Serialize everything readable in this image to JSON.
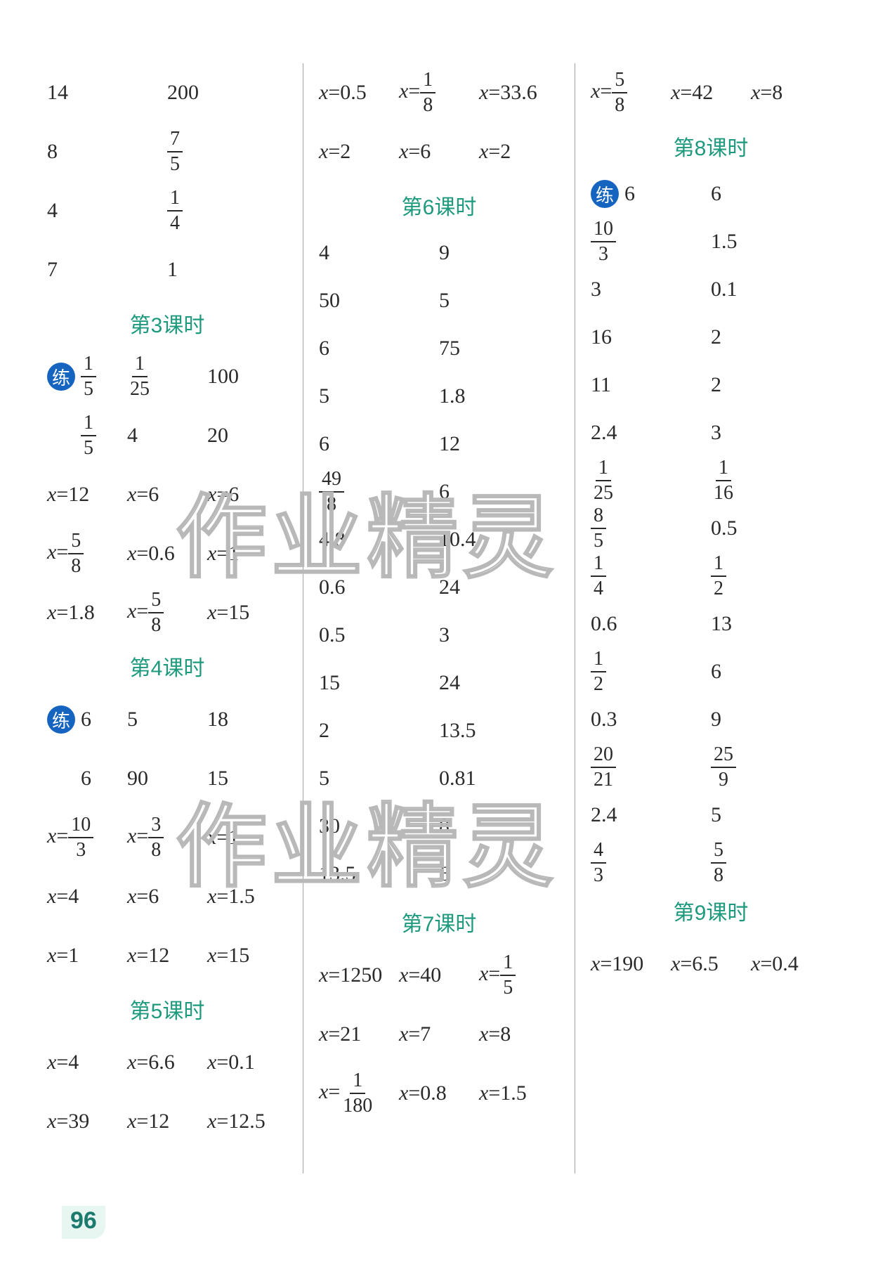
{
  "page_number": "96",
  "watermark": "作业精灵",
  "colors": {
    "text": "#2a2a2a",
    "heading": "#1d9a7e",
    "badge_bg": "#1565c0",
    "divider": "#9ea3a6",
    "pagenum": "#1d7a6e",
    "pagenum_bg": "#e8f6f2"
  },
  "badge_label": "练",
  "columns": [
    {
      "rows": [
        {
          "type": "row",
          "cells": [
            "14",
            "200"
          ]
        },
        {
          "type": "row",
          "cells": [
            "8",
            {
              "frac": [
                "7",
                "5"
              ]
            }
          ]
        },
        {
          "type": "row",
          "cells": [
            "4",
            {
              "frac": [
                "1",
                "4"
              ]
            }
          ]
        },
        {
          "type": "row",
          "cells": [
            "7",
            "1"
          ]
        },
        {
          "type": "header",
          "text": "第3课时"
        },
        {
          "type": "row",
          "badge": true,
          "cells": [
            {
              "frac": [
                "1",
                "5"
              ]
            },
            {
              "frac": [
                "1",
                "25"
              ]
            },
            "100"
          ]
        },
        {
          "type": "row",
          "indent": true,
          "cells": [
            {
              "frac": [
                "1",
                "5"
              ]
            },
            "4",
            "20"
          ]
        },
        {
          "type": "row",
          "cells": [
            {
              "eq": "12"
            },
            {
              "eq": "6"
            },
            {
              "eq": "6"
            }
          ]
        },
        {
          "type": "row",
          "cells": [
            {
              "eq": {
                "frac": [
                  "5",
                  "8"
                ]
              }
            },
            {
              "eq": "0.6"
            },
            {
              "eq": "1"
            }
          ]
        },
        {
          "type": "row",
          "cells": [
            {
              "eq": "1.8"
            },
            {
              "eq": {
                "frac": [
                  "5",
                  "8"
                ]
              }
            },
            {
              "eq": "15"
            }
          ]
        },
        {
          "type": "header",
          "text": "第4课时"
        },
        {
          "type": "row",
          "badge": true,
          "cells": [
            "6",
            "5",
            "18"
          ]
        },
        {
          "type": "row",
          "indent": true,
          "cells": [
            "6",
            "90",
            "15"
          ]
        },
        {
          "type": "row",
          "cells": [
            {
              "eq": {
                "frac": [
                  "10",
                  "3"
                ]
              }
            },
            {
              "eq": {
                "frac": [
                  "3",
                  "8"
                ]
              }
            },
            {
              "eq": "1"
            }
          ]
        },
        {
          "type": "row",
          "cells": [
            {
              "eq": "4"
            },
            {
              "eq": "6"
            },
            {
              "eq": "1.5"
            }
          ]
        },
        {
          "type": "row",
          "cells": [
            {
              "eq": "1"
            },
            {
              "eq": "12"
            },
            {
              "eq": "15"
            }
          ]
        },
        {
          "type": "header",
          "text": "第5课时"
        },
        {
          "type": "row",
          "cells": [
            {
              "eq": "4"
            },
            {
              "eq": "6.6"
            },
            {
              "eq": "0.1"
            }
          ]
        },
        {
          "type": "row",
          "cells": [
            {
              "eq": "39"
            },
            {
              "eq": "12"
            },
            {
              "eq": "12.5"
            }
          ]
        }
      ]
    },
    {
      "rows": [
        {
          "type": "row",
          "cells": [
            {
              "eq": "0.5"
            },
            {
              "eq": {
                "frac": [
                  "1",
                  "8"
                ]
              }
            },
            {
              "eq": "33.6"
            }
          ]
        },
        {
          "type": "row",
          "cells": [
            {
              "eq": "2"
            },
            {
              "eq": "6"
            },
            {
              "eq": "2"
            }
          ]
        },
        {
          "type": "header",
          "text": "第6课时"
        },
        {
          "type": "row",
          "half": true,
          "cells": [
            "4",
            "9"
          ]
        },
        {
          "type": "row",
          "half": true,
          "cells": [
            "50",
            "5"
          ]
        },
        {
          "type": "row",
          "half": true,
          "cells": [
            "6",
            "75"
          ]
        },
        {
          "type": "row",
          "half": true,
          "cells": [
            "5",
            "1.8"
          ]
        },
        {
          "type": "row",
          "half": true,
          "cells": [
            "6",
            "12"
          ]
        },
        {
          "type": "row",
          "half": true,
          "cells": [
            {
              "frac": [
                "49",
                "8"
              ]
            },
            "6"
          ]
        },
        {
          "type": "row",
          "half": true,
          "cells": [
            "4.8",
            "10.4"
          ]
        },
        {
          "type": "row",
          "half": true,
          "cells": [
            "0.6",
            "24"
          ]
        },
        {
          "type": "row",
          "half": true,
          "cells": [
            "0.5",
            "3"
          ]
        },
        {
          "type": "row",
          "half": true,
          "cells": [
            "15",
            "24"
          ]
        },
        {
          "type": "row",
          "half": true,
          "cells": [
            "2",
            "13.5"
          ]
        },
        {
          "type": "row",
          "half": true,
          "cells": [
            "5",
            "0.81"
          ]
        },
        {
          "type": "row",
          "half": true,
          "cells": [
            "30",
            "8"
          ]
        },
        {
          "type": "row",
          "half": true,
          "cells": [
            "13.5",
            "6"
          ]
        },
        {
          "type": "header",
          "text": "第7课时"
        },
        {
          "type": "row",
          "cells": [
            {
              "eq": "1250"
            },
            {
              "eq": "40"
            },
            {
              "eq": {
                "frac": [
                  "1",
                  "5"
                ]
              }
            }
          ]
        },
        {
          "type": "row",
          "cells": [
            {
              "eq": "21"
            },
            {
              "eq": "7"
            },
            {
              "eq": "8"
            }
          ]
        },
        {
          "type": "row",
          "cells": [
            {
              "eq": {
                "frac": [
                  "1",
                  "180"
                ]
              }
            },
            {
              "eq": "0.8"
            },
            {
              "eq": "1.5"
            }
          ]
        }
      ]
    },
    {
      "rows": [
        {
          "type": "row",
          "cells": [
            {
              "eq": {
                "frac": [
                  "5",
                  "8"
                ]
              }
            },
            {
              "eq": "42"
            },
            {
              "eq": "8"
            }
          ]
        },
        {
          "type": "header",
          "text": "第8课时"
        },
        {
          "type": "row",
          "badge": true,
          "half": true,
          "cells": [
            "6",
            "6"
          ]
        },
        {
          "type": "row",
          "half": true,
          "cells": [
            {
              "frac": [
                "10",
                "3"
              ]
            },
            "1.5"
          ]
        },
        {
          "type": "row",
          "half": true,
          "cells": [
            "3",
            "0.1"
          ]
        },
        {
          "type": "row",
          "half": true,
          "cells": [
            "16",
            "2"
          ]
        },
        {
          "type": "row",
          "half": true,
          "cells": [
            "11",
            "2"
          ]
        },
        {
          "type": "row",
          "half": true,
          "cells": [
            "2.4",
            "3"
          ]
        },
        {
          "type": "row",
          "half": true,
          "cells": [
            {
              "frac": [
                "1",
                "25"
              ]
            },
            {
              "frac": [
                "1",
                "16"
              ]
            }
          ]
        },
        {
          "type": "row",
          "half": true,
          "cells": [
            {
              "frac": [
                "8",
                "5"
              ]
            },
            "0.5"
          ]
        },
        {
          "type": "row",
          "half": true,
          "cells": [
            {
              "frac": [
                "1",
                "4"
              ]
            },
            {
              "frac": [
                "1",
                "2"
              ]
            }
          ]
        },
        {
          "type": "row",
          "half": true,
          "cells": [
            "0.6",
            "13"
          ]
        },
        {
          "type": "row",
          "half": true,
          "cells": [
            {
              "frac": [
                "1",
                "2"
              ]
            },
            "6"
          ]
        },
        {
          "type": "row",
          "half": true,
          "cells": [
            "0.3",
            "9"
          ]
        },
        {
          "type": "row",
          "half": true,
          "cells": [
            {
              "frac": [
                "20",
                "21"
              ]
            },
            {
              "frac": [
                "25",
                "9"
              ]
            }
          ]
        },
        {
          "type": "row",
          "half": true,
          "cells": [
            "2.4",
            "5"
          ]
        },
        {
          "type": "row",
          "half": true,
          "cells": [
            {
              "frac": [
                "4",
                "3"
              ]
            },
            {
              "frac": [
                "5",
                "8"
              ]
            }
          ]
        },
        {
          "type": "header",
          "text": "第9课时"
        },
        {
          "type": "row",
          "cells": [
            {
              "eq": "190"
            },
            {
              "eq": "6.5"
            },
            {
              "eq": "0.4"
            }
          ]
        }
      ]
    }
  ]
}
